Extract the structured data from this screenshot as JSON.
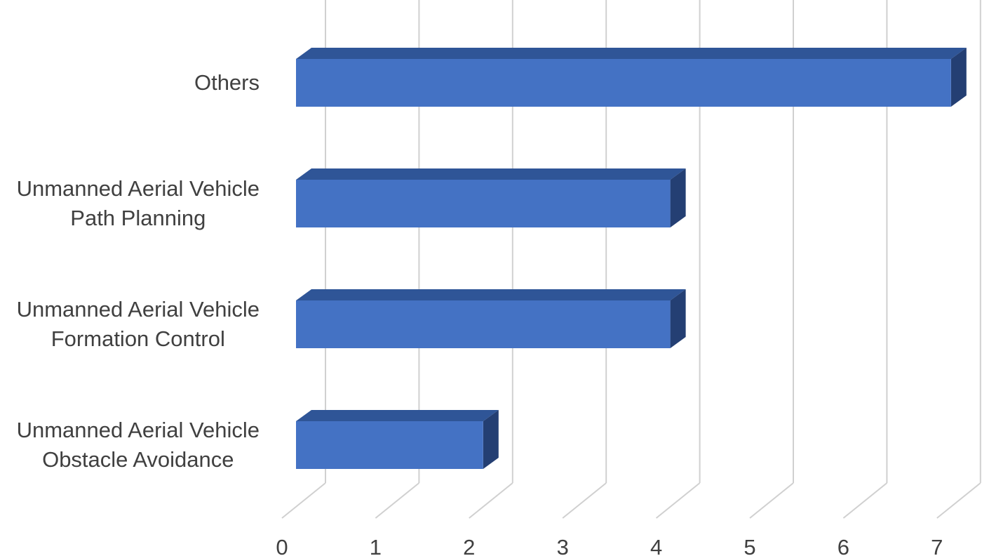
{
  "chart_data": {
    "type": "bar",
    "orientation": "horizontal",
    "three_d": true,
    "categories": [
      [
        "Unmanned Aerial Vehicle",
        "Obstacle Avoidance"
      ],
      [
        "Unmanned Aerial Vehicle",
        "Formation Control"
      ],
      [
        "Unmanned Aerial Vehicle",
        "Path Planning"
      ],
      [
        "Others"
      ]
    ],
    "values": [
      2,
      4,
      4,
      7
    ],
    "title": "",
    "xlabel": "",
    "ylabel": "",
    "xlim": [
      0,
      7
    ],
    "x_ticks": [
      0,
      1,
      2,
      3,
      4,
      5,
      6,
      7
    ],
    "grid": true,
    "legend": "none",
    "colors": {
      "bar_front": "#4472C4",
      "bar_top": "#2F5597",
      "bar_side": "#243F73",
      "grid": "#D0D0D0",
      "text": "#404040"
    }
  }
}
